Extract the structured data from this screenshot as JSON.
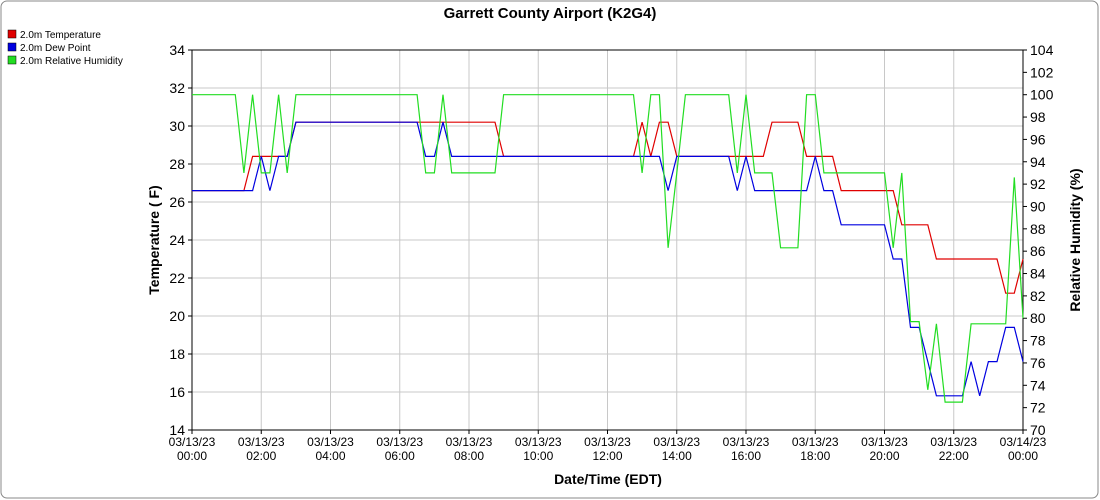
{
  "chart_data": {
    "type": "line",
    "title": "Garrett County Airport (K2G4)",
    "x_label": "Date/Time (EDT)",
    "y_label": "Temperature ( F)",
    "y2_label": "Relative Humidity (%)",
    "ylim": [
      14,
      34
    ],
    "yticks": [
      14,
      16,
      18,
      20,
      22,
      24,
      26,
      28,
      30,
      32,
      34
    ],
    "y2lim": [
      70,
      104
    ],
    "y2ticks": [
      70,
      72,
      74,
      76,
      78,
      80,
      82,
      84,
      86,
      88,
      90,
      92,
      94,
      96,
      98,
      100,
      102,
      104
    ],
    "xlim": [
      "03/13/23 00:00",
      "03/14/23 00:00"
    ],
    "xticks": [
      "03/13/23 00:00",
      "03/13/23 02:00",
      "03/13/23 04:00",
      "03/13/23 06:00",
      "03/13/23 08:00",
      "03/13/23 10:00",
      "03/13/23 12:00",
      "03/13/23 14:00",
      "03/13/23 16:00",
      "03/13/23 18:00",
      "03/13/23 20:00",
      "03/13/23 22:00",
      "03/14/23 00:00"
    ],
    "grid": true,
    "legend": "top-left",
    "x": [
      "03/13/23 00:00",
      "03/13/23 00:15",
      "03/13/23 00:30",
      "03/13/23 00:45",
      "03/13/23 01:00",
      "03/13/23 01:15",
      "03/13/23 01:30",
      "03/13/23 01:45",
      "03/13/23 02:00",
      "03/13/23 02:15",
      "03/13/23 02:30",
      "03/13/23 02:45",
      "03/13/23 03:00",
      "03/13/23 03:15",
      "03/13/23 03:30",
      "03/13/23 03:45",
      "03/13/23 04:00",
      "03/13/23 04:15",
      "03/13/23 04:30",
      "03/13/23 04:45",
      "03/13/23 05:00",
      "03/13/23 05:15",
      "03/13/23 05:30",
      "03/13/23 05:45",
      "03/13/23 06:00",
      "03/13/23 06:15",
      "03/13/23 06:30",
      "03/13/23 06:45",
      "03/13/23 07:00",
      "03/13/23 07:15",
      "03/13/23 07:30",
      "03/13/23 07:45",
      "03/13/23 08:00",
      "03/13/23 08:15",
      "03/13/23 08:30",
      "03/13/23 08:45",
      "03/13/23 09:00",
      "03/13/23 09:15",
      "03/13/23 09:30",
      "03/13/23 09:45",
      "03/13/23 10:00",
      "03/13/23 10:15",
      "03/13/23 10:30",
      "03/13/23 10:45",
      "03/13/23 11:00",
      "03/13/23 11:15",
      "03/13/23 11:30",
      "03/13/23 11:45",
      "03/13/23 12:00",
      "03/13/23 12:15",
      "03/13/23 12:30",
      "03/13/23 12:45",
      "03/13/23 13:00",
      "03/13/23 13:15",
      "03/13/23 13:30",
      "03/13/23 13:45",
      "03/13/23 14:00",
      "03/13/23 14:15",
      "03/13/23 14:30",
      "03/13/23 14:45",
      "03/13/23 15:00",
      "03/13/23 15:15",
      "03/13/23 15:30",
      "03/13/23 15:45",
      "03/13/23 16:00",
      "03/13/23 16:15",
      "03/13/23 16:30",
      "03/13/23 16:45",
      "03/13/23 17:00",
      "03/13/23 17:15",
      "03/13/23 17:30",
      "03/13/23 17:45",
      "03/13/23 18:00",
      "03/13/23 18:15",
      "03/13/23 18:30",
      "03/13/23 18:45",
      "03/13/23 19:00",
      "03/13/23 19:15",
      "03/13/23 19:30",
      "03/13/23 19:45",
      "03/13/23 20:00",
      "03/13/23 20:15",
      "03/13/23 20:30",
      "03/13/23 20:45",
      "03/13/23 21:00",
      "03/13/23 21:15",
      "03/13/23 21:30",
      "03/13/23 21:45",
      "03/13/23 22:00",
      "03/13/23 22:15",
      "03/13/23 22:30",
      "03/13/23 22:45",
      "03/13/23 23:00",
      "03/13/23 23:15",
      "03/13/23 23:30",
      "03/13/23 23:45",
      "03/14/23 00:00"
    ],
    "series": [
      {
        "name": "2.0m Temperature",
        "color": "#e00000",
        "values": [
          26.6,
          26.6,
          26.6,
          26.6,
          26.6,
          26.6,
          26.6,
          28.4,
          28.4,
          28.4,
          28.4,
          28.4,
          30.2,
          30.2,
          30.2,
          30.2,
          30.2,
          30.2,
          30.2,
          30.2,
          30.2,
          30.2,
          30.2,
          30.2,
          30.2,
          30.2,
          30.2,
          30.2,
          30.2,
          30.2,
          30.2,
          30.2,
          30.2,
          30.2,
          30.2,
          30.2,
          28.4,
          28.4,
          28.4,
          28.4,
          28.4,
          28.4,
          28.4,
          28.4,
          28.4,
          28.4,
          28.4,
          28.4,
          28.4,
          28.4,
          28.4,
          28.4,
          30.2,
          28.4,
          30.2,
          30.2,
          28.4,
          28.4,
          28.4,
          28.4,
          28.4,
          28.4,
          28.4,
          28.4,
          28.4,
          28.4,
          28.4,
          30.2,
          30.2,
          30.2,
          30.2,
          28.4,
          28.4,
          28.4,
          28.4,
          26.6,
          26.6,
          26.6,
          26.6,
          26.6,
          26.6,
          26.6,
          24.8,
          24.8,
          24.8,
          24.8,
          23.0,
          23.0,
          23.0,
          23.0,
          23.0,
          23.0,
          23.0,
          23.0,
          21.2,
          21.2,
          23.0
        ]
      },
      {
        "name": "2.0m Dew Point",
        "color": "#0000e0",
        "values": [
          26.6,
          26.6,
          26.6,
          26.6,
          26.6,
          26.6,
          26.6,
          26.6,
          28.4,
          26.6,
          28.4,
          28.4,
          30.2,
          30.2,
          30.2,
          30.2,
          30.2,
          30.2,
          30.2,
          30.2,
          30.2,
          30.2,
          30.2,
          30.2,
          30.2,
          30.2,
          30.2,
          28.4,
          28.4,
          30.2,
          28.4,
          28.4,
          28.4,
          28.4,
          28.4,
          28.4,
          28.4,
          28.4,
          28.4,
          28.4,
          28.4,
          28.4,
          28.4,
          28.4,
          28.4,
          28.4,
          28.4,
          28.4,
          28.4,
          28.4,
          28.4,
          28.4,
          28.4,
          28.4,
          28.4,
          26.6,
          28.4,
          28.4,
          28.4,
          28.4,
          28.4,
          28.4,
          28.4,
          26.6,
          28.4,
          26.6,
          26.6,
          26.6,
          26.6,
          26.6,
          26.6,
          26.6,
          28.4,
          26.6,
          26.6,
          24.8,
          24.8,
          24.8,
          24.8,
          24.8,
          24.8,
          23.0,
          23.0,
          19.4,
          19.4,
          17.6,
          15.8,
          15.8,
          15.8,
          15.8,
          17.6,
          15.8,
          17.6,
          17.6,
          19.4,
          19.4,
          17.6
        ]
      },
      {
        "name": "2.0m Relative Humidity",
        "color": "#22dd22",
        "axis": "y2",
        "values": [
          100,
          100,
          100,
          100,
          100,
          100,
          93,
          100,
          93,
          93,
          100,
          93,
          100,
          100,
          100,
          100,
          100,
          100,
          100,
          100,
          100,
          100,
          100,
          100,
          100,
          100,
          100,
          93,
          93,
          100,
          93,
          93,
          93,
          93,
          93,
          93,
          100,
          100,
          100,
          100,
          100,
          100,
          100,
          100,
          100,
          100,
          100,
          100,
          100,
          100,
          100,
          100,
          93,
          100,
          100,
          86.3,
          93,
          100,
          100,
          100,
          100,
          100,
          100,
          93,
          100,
          93,
          93,
          93,
          86.3,
          86.3,
          86.3,
          100,
          100,
          93,
          93,
          93,
          93,
          93,
          93,
          93,
          93,
          86.3,
          93,
          79.7,
          79.7,
          73.6,
          79.5,
          72.5,
          72.5,
          72.5,
          79.5,
          79.5,
          79.5,
          79.5,
          79.5,
          92.6,
          80
        ]
      }
    ]
  }
}
